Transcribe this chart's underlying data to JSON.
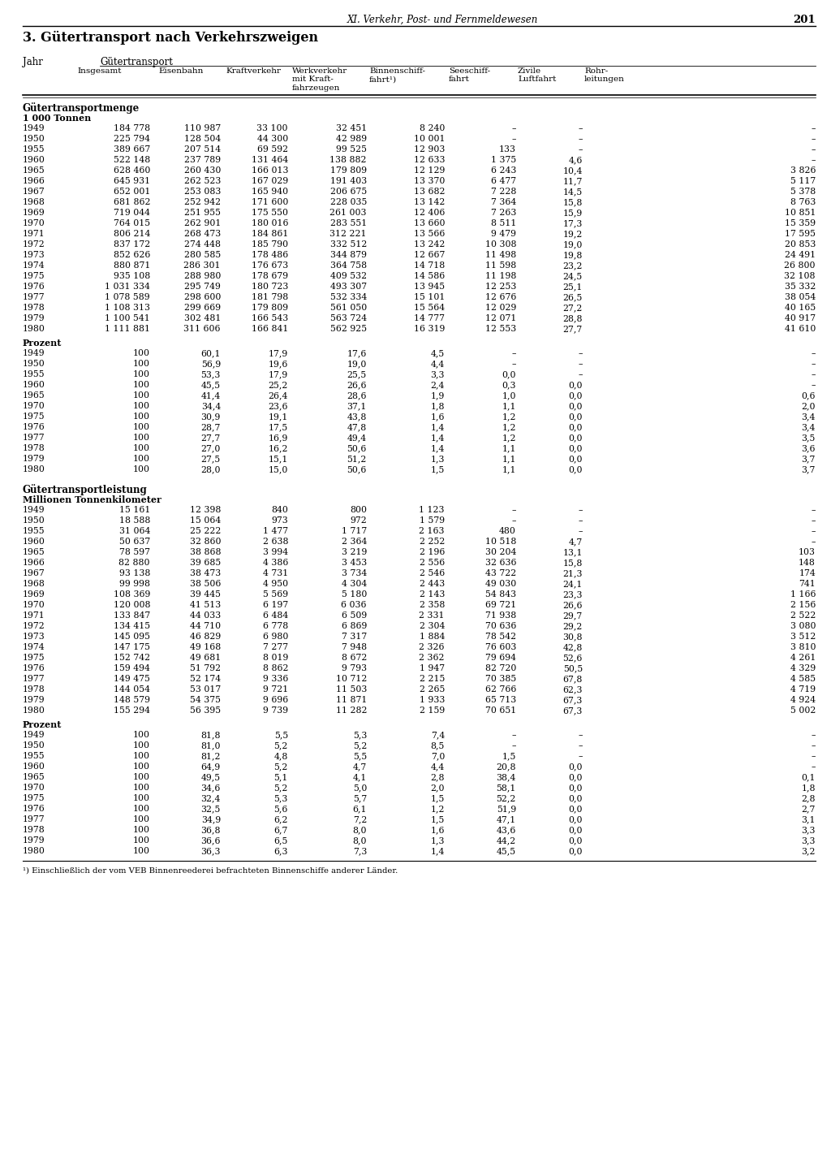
{
  "page_header": "XI. Verkehr, Post- und Fernmeldewesen",
  "page_number": "201",
  "section_title": "3. Gütertransport nach Verkehrszweigen",
  "col_jahr": "Jahr",
  "col_gueter": "Gütertransport",
  "col_headers": [
    "Insgesamt",
    "Eisenbahn",
    "Kraftverkehr",
    "Werkverkehr\nmit Kraft-\nfahrzeugen",
    "Binnenschiff-\nfahrt¹)",
    "Seeschiff-\nfahrt",
    "Zivile\nLuftfahrt",
    "Rohr-\nleitungen"
  ],
  "section1_label": "Gütertransportmenge",
  "section1_unit": "1 000 Tonnen",
  "section1_data": [
    [
      "1949",
      "184 778",
      "110 987",
      "33 100",
      "32 451",
      "8 240",
      "–",
      "–",
      "–"
    ],
    [
      "1950",
      "225 794",
      "128 504",
      "44 300",
      "42 989",
      "10 001",
      "–",
      "–",
      "–"
    ],
    [
      "1955",
      "389 667",
      "207 514",
      "69 592",
      "99 525",
      "12 903",
      "133",
      "–",
      "–"
    ],
    [
      "1960",
      "522 148",
      "237 789",
      "131 464",
      "138 882",
      "12 633",
      "1 375",
      "4,6",
      "–"
    ],
    [
      "1965",
      "628 460",
      "260 430",
      "166 013",
      "179 809",
      "12 129",
      "6 243",
      "10,4",
      "3 826"
    ],
    [
      "1966",
      "645 931",
      "262 523",
      "167 029",
      "191 403",
      "13 370",
      "6 477",
      "11,7",
      "5 117"
    ],
    [
      "1967",
      "652 001",
      "253 083",
      "165 940",
      "206 675",
      "13 682",
      "7 228",
      "14,5",
      "5 378"
    ],
    [
      "1968",
      "681 862",
      "252 942",
      "171 600",
      "228 035",
      "13 142",
      "7 364",
      "15,8",
      "8 763"
    ],
    [
      "1969",
      "719 044",
      "251 955",
      "175 550",
      "261 003",
      "12 406",
      "7 263",
      "15,9",
      "10 851"
    ],
    [
      "1970",
      "764 015",
      "262 901",
      "180 016",
      "283 551",
      "13 660",
      "8 511",
      "17,3",
      "15 359"
    ],
    [
      "1971",
      "806 214",
      "268 473",
      "184 861",
      "312 221",
      "13 566",
      "9 479",
      "19,2",
      "17 595"
    ],
    [
      "1972",
      "837 172",
      "274 448",
      "185 790",
      "332 512",
      "13 242",
      "10 308",
      "19,0",
      "20 853"
    ],
    [
      "1973",
      "852 626",
      "280 585",
      "178 486",
      "344 879",
      "12 667",
      "11 498",
      "19,8",
      "24 491"
    ],
    [
      "1974",
      "880 871",
      "286 301",
      "176 673",
      "364 758",
      "14 718",
      "11 598",
      "23,2",
      "26 800"
    ],
    [
      "1975",
      "935 108",
      "288 980",
      "178 679",
      "409 532",
      "14 586",
      "11 198",
      "24,5",
      "32 108"
    ],
    [
      "1976",
      "1 031 334",
      "295 749",
      "180 723",
      "493 307",
      "13 945",
      "12 253",
      "25,1",
      "35 332"
    ],
    [
      "1977",
      "1 078 589",
      "298 600",
      "181 798",
      "532 334",
      "15 101",
      "12 676",
      "26,5",
      "38 054"
    ],
    [
      "1978",
      "1 108 313",
      "299 669",
      "179 809",
      "561 050",
      "15 564",
      "12 029",
      "27,2",
      "40 165"
    ],
    [
      "1979",
      "1 100 541",
      "302 481",
      "166 543",
      "563 724",
      "14 777",
      "12 071",
      "28,8",
      "40 917"
    ],
    [
      "1980",
      "1 111 881",
      "311 606",
      "166 841",
      "562 925",
      "16 319",
      "12 553",
      "27,7",
      "41 610"
    ]
  ],
  "section1_pct_label": "Prozent",
  "section1_pct_data": [
    [
      "1949",
      "100",
      "60,1",
      "17,9",
      "17,6",
      "4,5",
      "–",
      "–",
      "–"
    ],
    [
      "1950",
      "100",
      "56,9",
      "19,6",
      "19,0",
      "4,4",
      "–",
      "–",
      "–"
    ],
    [
      "1955",
      "100",
      "53,3",
      "17,9",
      "25,5",
      "3,3",
      "0,0",
      "–",
      "–"
    ],
    [
      "1960",
      "100",
      "45,5",
      "25,2",
      "26,6",
      "2,4",
      "0,3",
      "0,0",
      "–"
    ],
    [
      "1965",
      "100",
      "41,4",
      "26,4",
      "28,6",
      "1,9",
      "1,0",
      "0,0",
      "0,6"
    ],
    [
      "1970",
      "100",
      "34,4",
      "23,6",
      "37,1",
      "1,8",
      "1,1",
      "0,0",
      "2,0"
    ],
    [
      "1975",
      "100",
      "30,9",
      "19,1",
      "43,8",
      "1,6",
      "1,2",
      "0,0",
      "3,4"
    ],
    [
      "1976",
      "100",
      "28,7",
      "17,5",
      "47,8",
      "1,4",
      "1,2",
      "0,0",
      "3,4"
    ],
    [
      "1977",
      "100",
      "27,7",
      "16,9",
      "49,4",
      "1,4",
      "1,2",
      "0,0",
      "3,5"
    ],
    [
      "1978",
      "100",
      "27,0",
      "16,2",
      "50,6",
      "1,4",
      "1,1",
      "0,0",
      "3,6"
    ],
    [
      "1979",
      "100",
      "27,5",
      "15,1",
      "51,2",
      "1,3",
      "1,1",
      "0,0",
      "3,7"
    ],
    [
      "1980",
      "100",
      "28,0",
      "15,0",
      "50,6",
      "1,5",
      "1,1",
      "0,0",
      "3,7"
    ]
  ],
  "section2_label": "Gütertransportleistung",
  "section2_unit": "Millionen Tonnenkilometer",
  "section2_data": [
    [
      "1949",
      "15 161",
      "12 398",
      "840",
      "800",
      "1 123",
      "–",
      "–",
      "–"
    ],
    [
      "1950",
      "18 588",
      "15 064",
      "973",
      "972",
      "1 579",
      "–",
      "–",
      "–"
    ],
    [
      "1955",
      "31 064",
      "25 222",
      "1 477",
      "1 717",
      "2 163",
      "480",
      "–",
      "–"
    ],
    [
      "1960",
      "50 637",
      "32 860",
      "2 638",
      "2 364",
      "2 252",
      "10 518",
      "4,7",
      "–"
    ],
    [
      "1965",
      "78 597",
      "38 868",
      "3 994",
      "3 219",
      "2 196",
      "30 204",
      "13,1",
      "103"
    ],
    [
      "1966",
      "82 880",
      "39 685",
      "4 386",
      "3 453",
      "2 556",
      "32 636",
      "15,8",
      "148"
    ],
    [
      "1967",
      "93 138",
      "38 473",
      "4 731",
      "3 734",
      "2 546",
      "43 722",
      "21,3",
      "174"
    ],
    [
      "1968",
      "99 998",
      "38 506",
      "4 950",
      "4 304",
      "2 443",
      "49 030",
      "24,1",
      "741"
    ],
    [
      "1969",
      "108 369",
      "39 445",
      "5 569",
      "5 180",
      "2 143",
      "54 843",
      "23,3",
      "1 166"
    ],
    [
      "1970",
      "120 008",
      "41 513",
      "6 197",
      "6 036",
      "2 358",
      "69 721",
      "26,6",
      "2 156"
    ],
    [
      "1971",
      "133 847",
      "44 033",
      "6 484",
      "6 509",
      "2 331",
      "71 938",
      "29,7",
      "2 522"
    ],
    [
      "1972",
      "134 415",
      "44 710",
      "6 778",
      "6 869",
      "2 304",
      "70 636",
      "29,2",
      "3 080"
    ],
    [
      "1973",
      "145 095",
      "46 829",
      "6 980",
      "7 317",
      "1 884",
      "78 542",
      "30,8",
      "3 512"
    ],
    [
      "1974",
      "147 175",
      "49 168",
      "7 277",
      "7 948",
      "2 326",
      "76 603",
      "42,8",
      "3 810"
    ],
    [
      "1975",
      "152 742",
      "49 681",
      "8 019",
      "8 672",
      "2 362",
      "79 694",
      "52,6",
      "4 261"
    ],
    [
      "1976",
      "159 494",
      "51 792",
      "8 862",
      "9 793",
      "1 947",
      "82 720",
      "50,5",
      "4 329"
    ],
    [
      "1977",
      "149 475",
      "52 174",
      "9 336",
      "10 712",
      "2 215",
      "70 385",
      "67,8",
      "4 585"
    ],
    [
      "1978",
      "144 054",
      "53 017",
      "9 721",
      "11 503",
      "2 265",
      "62 766",
      "62,3",
      "4 719"
    ],
    [
      "1979",
      "148 579",
      "54 375",
      "9 696",
      "11 871",
      "1 933",
      "65 713",
      "67,3",
      "4 924"
    ],
    [
      "1980",
      "155 294",
      "56 395",
      "9 739",
      "11 282",
      "2 159",
      "70 651",
      "67,3",
      "5 002"
    ]
  ],
  "section2_pct_label": "Prozent",
  "section2_pct_data": [
    [
      "1949",
      "100",
      "81,8",
      "5,5",
      "5,3",
      "7,4",
      "–",
      "–",
      "–"
    ],
    [
      "1950",
      "100",
      "81,0",
      "5,2",
      "5,2",
      "8,5",
      "–",
      "–",
      "–"
    ],
    [
      "1955",
      "100",
      "81,2",
      "4,8",
      "5,5",
      "7,0",
      "1,5",
      "–",
      "–"
    ],
    [
      "1960",
      "100",
      "64,9",
      "5,2",
      "4,7",
      "4,4",
      "20,8",
      "0,0",
      "–"
    ],
    [
      "1965",
      "100",
      "49,5",
      "5,1",
      "4,1",
      "2,8",
      "38,4",
      "0,0",
      "0,1"
    ],
    [
      "1970",
      "100",
      "34,6",
      "5,2",
      "5,0",
      "2,0",
      "58,1",
      "0,0",
      "1,8"
    ],
    [
      "1975",
      "100",
      "32,4",
      "5,3",
      "5,7",
      "1,5",
      "52,2",
      "0,0",
      "2,8"
    ],
    [
      "1976",
      "100",
      "32,5",
      "5,6",
      "6,1",
      "1,2",
      "51,9",
      "0,0",
      "2,7"
    ],
    [
      "1977",
      "100",
      "34,9",
      "6,2",
      "7,2",
      "1,5",
      "47,1",
      "0,0",
      "3,1"
    ],
    [
      "1978",
      "100",
      "36,8",
      "6,7",
      "8,0",
      "1,6",
      "43,6",
      "0,0",
      "3,3"
    ],
    [
      "1979",
      "100",
      "36,6",
      "6,5",
      "8,0",
      "1,3",
      "44,2",
      "0,0",
      "3,3"
    ],
    [
      "1980",
      "100",
      "36,3",
      "6,3",
      "7,3",
      "1,4",
      "45,5",
      "0,0",
      "3,2"
    ]
  ],
  "footnote": "¹) Einschließlich der vom VEB Binnenreederei befrachteten Binnenschiffe anderer Länder."
}
